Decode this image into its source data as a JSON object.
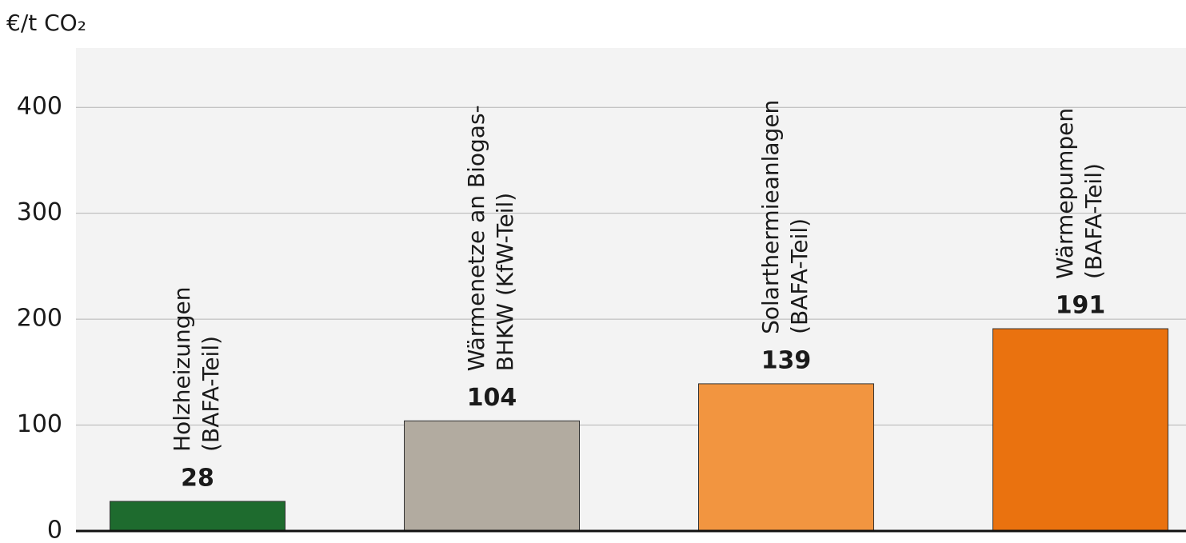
{
  "chart_data": {
    "type": "bar",
    "y_label": "€/t CO₂",
    "categories": [
      [
        "Holzheizungen",
        "(BAFA-Teil)"
      ],
      [
        "Wärmenetze an Biogas-",
        "BHKW (KfW-Teil)"
      ],
      [
        "Solarthermieanlagen",
        "(BAFA-Teil)"
      ],
      [
        "Wärmepumpen",
        "(BAFA-Teil)"
      ]
    ],
    "values": [
      28,
      104,
      139,
      191
    ],
    "colors": [
      "#1e6b2e",
      "#b2aba0",
      "#f29540",
      "#ea720f"
    ],
    "ylim": [
      0,
      450
    ],
    "yticks": [
      0,
      100,
      200,
      300,
      400
    ],
    "grid": true
  }
}
